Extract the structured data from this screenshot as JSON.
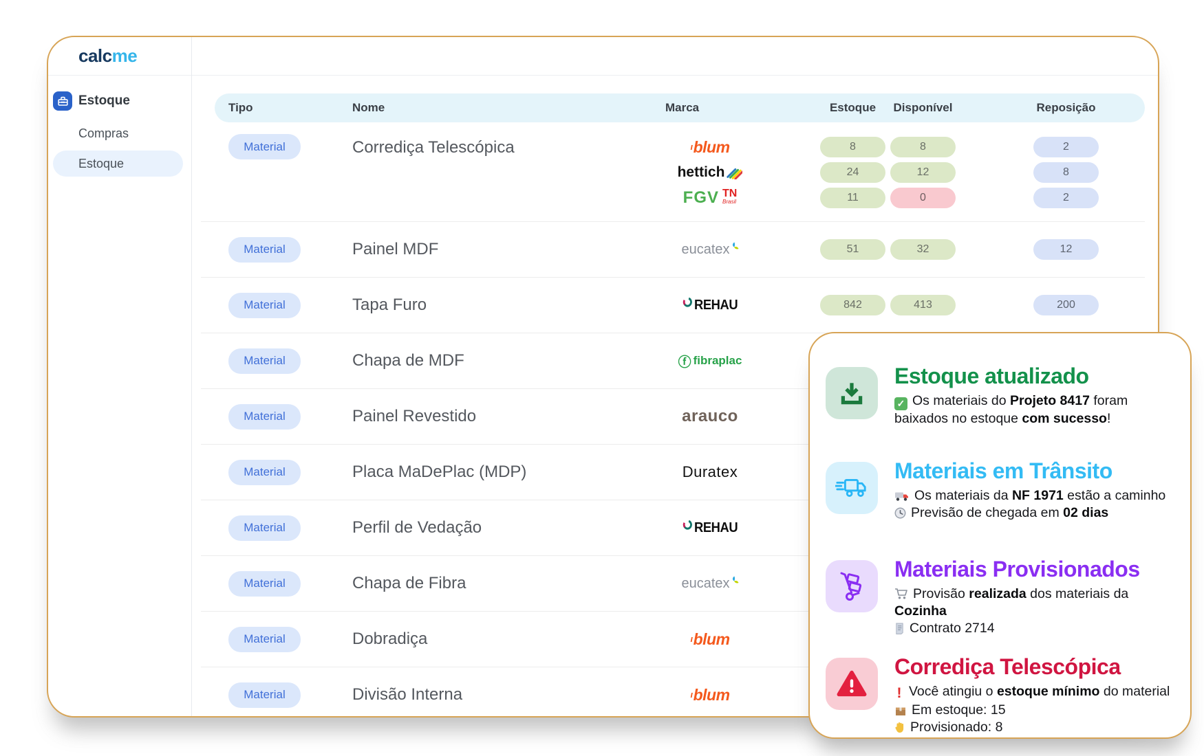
{
  "app": {
    "logo_part1": "calc",
    "logo_part2": "me",
    "accent_border": "#d7a456"
  },
  "sidebar": {
    "section_label": "Estoque",
    "items": [
      {
        "label": "Compras",
        "active": false
      },
      {
        "label": "Estoque",
        "active": true
      }
    ]
  },
  "table": {
    "headers": {
      "tipo": "Tipo",
      "nome": "Nome",
      "marca": "Marca",
      "estoque": "Estoque",
      "disponivel": "Disponível",
      "reposicao": "Reposição"
    },
    "type_badge_color": "#dbe7fb",
    "pill_colors": {
      "ok": "#dce8c7",
      "zero": "#f9c9cf",
      "reposicao": "#d8e2f8"
    },
    "rows": [
      {
        "tipo": "Material",
        "nome": "Corrediça Telescópica",
        "lines": [
          {
            "brand": "blum",
            "estoque": "8",
            "disponivel": "8",
            "disponivel_zero": false,
            "reposicao": "2"
          },
          {
            "brand": "hettich",
            "estoque": "24",
            "disponivel": "12",
            "disponivel_zero": false,
            "reposicao": "8"
          },
          {
            "brand": "fgv-tn",
            "estoque": "11",
            "disponivel": "0",
            "disponivel_zero": true,
            "reposicao": "2"
          }
        ]
      },
      {
        "tipo": "Material",
        "nome": "Painel MDF",
        "lines": [
          {
            "brand": "eucatex",
            "estoque": "51",
            "disponivel": "32",
            "disponivel_zero": false,
            "reposicao": "12"
          }
        ]
      },
      {
        "tipo": "Material",
        "nome": "Tapa Furo",
        "lines": [
          {
            "brand": "rehau",
            "estoque": "842",
            "disponivel": "413",
            "disponivel_zero": false,
            "reposicao": "200"
          }
        ]
      },
      {
        "tipo": "Material",
        "nome": "Chapa de MDF",
        "lines": [
          {
            "brand": "fibraplac"
          }
        ]
      },
      {
        "tipo": "Material",
        "nome": "Painel Revestido",
        "lines": [
          {
            "brand": "arauco"
          }
        ]
      },
      {
        "tipo": "Material",
        "nome": "Placa MaDePlac (MDP)",
        "lines": [
          {
            "brand": "duratex"
          }
        ]
      },
      {
        "tipo": "Material",
        "nome": "Perfil de Vedação",
        "lines": [
          {
            "brand": "rehau"
          }
        ]
      },
      {
        "tipo": "Material",
        "nome": "Chapa de Fibra",
        "lines": [
          {
            "brand": "eucatex"
          }
        ]
      },
      {
        "tipo": "Material",
        "nome": "Dobradiça",
        "lines": [
          {
            "brand": "blum"
          }
        ]
      },
      {
        "tipo": "Material",
        "nome": "Divisão Interna",
        "lines": [
          {
            "brand": "blum"
          }
        ]
      }
    ],
    "brand_names": {
      "blum": "blum",
      "hettich": "hettich",
      "fgv-tn": "FGV TN Brasil",
      "eucatex": "eucatex",
      "rehau": "REHAU",
      "fibraplac": "fibraplac",
      "arauco": "arauco",
      "duratex": "Duratex"
    }
  },
  "notifications": [
    {
      "id": "estoque-atualizado",
      "title": "Estoque atualizado",
      "title_color": "#13914b",
      "icon": "download",
      "icon_bg": "#cfe6d9",
      "icon_color": "#1b7a3d",
      "lines": [
        {
          "icon": "check-emoji",
          "segments": [
            {
              "t": "Os materiais do "
            },
            {
              "t": "Projeto 8417",
              "b": true
            },
            {
              "t": " foram baixados no estoque "
            },
            {
              "t": "com sucesso",
              "b": true
            },
            {
              "t": "!"
            }
          ]
        }
      ]
    },
    {
      "id": "materiais-em-transito",
      "title": "Materiais em Trânsito",
      "title_color": "#33bbf4",
      "icon": "truck",
      "icon_bg": "#d7f1fc",
      "icon_color": "#29b6f6",
      "lines": [
        {
          "icon": "truck-emoji",
          "segments": [
            {
              "t": "Os materiais da "
            },
            {
              "t": "NF 1971",
              "b": true
            },
            {
              "t": " estão a caminho"
            }
          ]
        },
        {
          "icon": "clock-emoji",
          "segments": [
            {
              "t": "Previsão de chegada em "
            },
            {
              "t": "02 dias",
              "b": true
            }
          ]
        }
      ]
    },
    {
      "id": "materiais-provisionados",
      "title": "Materiais Provisionados",
      "title_color": "#8a2ef2",
      "icon": "hand-truck",
      "icon_bg": "#e9dbfd",
      "icon_color": "#8a2ef2",
      "lines": [
        {
          "icon": "cart-emoji",
          "segments": [
            {
              "t": "Provisão "
            },
            {
              "t": "realizada",
              "b": true
            },
            {
              "t": " dos materiais da "
            },
            {
              "t": "Cozinha",
              "b": true
            }
          ]
        },
        {
          "icon": "receipt-emoji",
          "segments": [
            {
              "t": "Contrato 2714"
            }
          ]
        }
      ]
    },
    {
      "id": "corredica-telescopica",
      "title": "Corrediça Telescópica",
      "title_color": "#d01541",
      "icon": "warning",
      "icon_bg": "#f9ccd4",
      "icon_color": "#e3203f",
      "lines": [
        {
          "icon": "exclamation-emoji",
          "segments": [
            {
              "t": "Você atingiu o "
            },
            {
              "t": "estoque mínimo",
              "b": true
            },
            {
              "t": " do material"
            }
          ]
        },
        {
          "icon": "box-emoji",
          "segments": [
            {
              "t": "Em estoque: 15"
            }
          ]
        },
        {
          "icon": "hand-emoji",
          "segments": [
            {
              "t": "Provisionado: 8"
            }
          ]
        }
      ]
    }
  ]
}
